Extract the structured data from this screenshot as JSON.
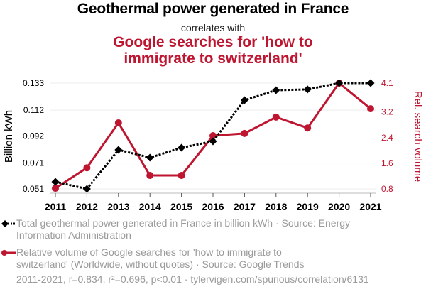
{
  "header": {
    "title": "Geothermal power generated in France",
    "subtitle": "correlates with",
    "title2_line1": "Google searches for 'how to",
    "title2_line2": "immigrate to switzerland'"
  },
  "legend": {
    "series1_line1": "Total geothermal power generated in France in billion kWh · Source: Energy",
    "series1_line2": "Information Administration",
    "series2_line1": "Relative volume of Google searches for 'how to immigrate to",
    "series2_line2": "switzerland' (Worldwide, without quotes) · Source: Google Trends"
  },
  "footer": "2011-2021, r=0.834, r²=0.696, p<0.01 · tylervigen.com/spurious/correlation/6131",
  "colors": {
    "series1": "#000000",
    "series2": "#be1631",
    "grid": "#eeeeee",
    "axis": "#bbbbbb"
  },
  "chart_data": {
    "type": "line",
    "title": "Geothermal power generated in France correlates with Google searches for 'how to immigrate to switzerland'",
    "x": [
      "2011",
      "2012",
      "2013",
      "2014",
      "2015",
      "2016",
      "2017",
      "2018",
      "2019",
      "2020",
      "2021"
    ],
    "series": [
      {
        "name": "Total geothermal power generated in France in billion kWh",
        "axis": "left",
        "style": "dotted-line-diamond-markers",
        "values": [
          0.0565,
          0.051,
          0.0813,
          0.0752,
          0.0829,
          0.0879,
          0.1198,
          0.1275,
          0.1281,
          0.133,
          0.133
        ]
      },
      {
        "name": "Relative volume of Google searches for 'how to immigrate to switzerland'",
        "axis": "right",
        "style": "solid-line-circle-markers",
        "values": [
          0.82,
          1.46,
          2.86,
          1.22,
          1.22,
          2.46,
          2.53,
          3.04,
          2.7,
          4.1,
          3.3
        ]
      }
    ],
    "ylabel": "Billion kWh",
    "ylabel_right": "Rel. search volume",
    "xlabel": "",
    "ylim": [
      0.051,
      0.133
    ],
    "ylim_right": [
      0.8,
      4.1
    ],
    "yticks": [
      "0.133",
      "0.112",
      "0.092",
      "0.071",
      "0.051"
    ],
    "yticks_values": [
      0.133,
      0.112,
      0.092,
      0.071,
      0.051
    ],
    "yticks_right": [
      "4.1",
      "3.2",
      "2.4",
      "1.6",
      "0.8"
    ],
    "yticks_right_values": [
      4.1,
      3.2,
      2.4,
      1.6,
      0.8
    ],
    "grid": true,
    "legend_position": "bottom"
  }
}
